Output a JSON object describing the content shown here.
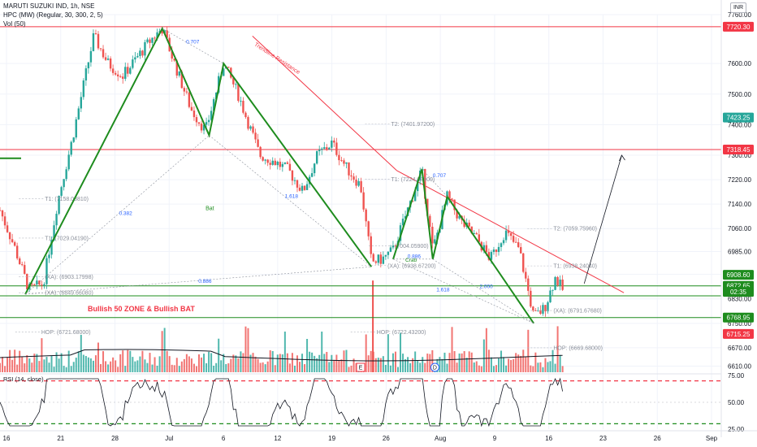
{
  "header": {
    "title": "MARUTI SUZUKI IND, 1h, NSE",
    "indicator": "HPC (MW) (Regular, 30, 300, 2, 5)",
    "volume": "Vol (50)",
    "currency": "INR"
  },
  "colors": {
    "up": "#26a69a",
    "down": "#ef5350",
    "pattern": "#1e8c1e",
    "resistance": "#f23645",
    "support": "#1e8c1e",
    "ma": "#131722",
    "rsi": "#131722"
  },
  "chart_data": [
    {
      "type": "candlestick",
      "title": "",
      "timeframe": "1h",
      "ylim": [
        6590,
        7760
      ],
      "y_ticks": [
        "7760.00",
        "7600.00",
        "7500.00",
        "7400.00",
        "7300.00",
        "7220.00",
        "7140.00",
        "7060.00",
        "6985.00",
        "6910.00",
        "6830.00",
        "6750.00",
        "6670.00",
        "6610.00"
      ],
      "x_ticks": [
        "16",
        "21",
        "28",
        "Jul",
        "6",
        "12",
        "19",
        "26",
        "Aug",
        "9",
        "16",
        "23",
        "26",
        "Sep"
      ],
      "price_tags": [
        {
          "label": "7720.30",
          "value": 7720.3,
          "color": "#f23645"
        },
        {
          "label": "7423.25",
          "value": 7423.25,
          "color": "#26a69a"
        },
        {
          "label": "7318.45",
          "value": 7318.45,
          "color": "#f23645"
        },
        {
          "label": "6908.60",
          "value": 6908.6,
          "color": "#1e8c1e"
        },
        {
          "label": "6872.65",
          "value": 6872.65,
          "color": "#1e8c1e"
        },
        {
          "label": "02:35",
          "value": 6853,
          "color": "#1e8c1e"
        },
        {
          "label": "6768.95",
          "value": 6768.95,
          "color": "#1e8c1e"
        },
        {
          "label": "6715.25",
          "value": 6715.25,
          "color": "#f23645"
        }
      ],
      "horizontal_lines": [
        {
          "value": 7720.3,
          "color": "#f23645"
        },
        {
          "value": 7318.45,
          "color": "#f23645"
        },
        {
          "value": 6872.65,
          "color": "#1e8c1e"
        },
        {
          "value": 6840,
          "color": "#1e8c1e"
        },
        {
          "value": 6768.95,
          "color": "#1e8c1e"
        }
      ],
      "harmonic_patterns": [
        {
          "name": "Bat",
          "points": [
            [
              0.035,
              6845
            ],
            [
              0.225,
              7715
            ],
            [
              0.29,
              7365
            ],
            [
              0.31,
              7600
            ],
            [
              0.515,
              6935
            ]
          ]
        },
        {
          "name": "Crab",
          "points": [
            [
              0.545,
              6960
            ],
            [
              0.585,
              7255
            ],
            [
              0.6,
              6960
            ],
            [
              0.62,
              7165
            ],
            [
              0.74,
              6750
            ]
          ]
        }
      ],
      "pattern_ratios": [
        {
          "text": "0.707",
          "x": 0.258,
          "y": 7665
        },
        {
          "text": "0.382",
          "x": 0.165,
          "y": 7105
        },
        {
          "text": "1.618",
          "x": 0.395,
          "y": 7160
        },
        {
          "text": "0.886",
          "x": 0.275,
          "y": 6883
        },
        {
          "text": "0.707",
          "x": 0.6,
          "y": 7228
        },
        {
          "text": "0.886",
          "x": 0.565,
          "y": 6963
        },
        {
          "text": "1.618",
          "x": 0.605,
          "y": 6855
        },
        {
          "text": "2.000",
          "x": 0.665,
          "y": 6865
        }
      ],
      "levels": [
        {
          "text": "T2: (7401.97200)",
          "x": 0.54,
          "y": 7402
        },
        {
          "text": "T1: (7224.08900)",
          "x": 0.54,
          "y": 7222
        },
        {
          "text": "T1: (7158.08810)",
          "x": 0.06,
          "y": 7158
        },
        {
          "text": "T1: (7029.04190)",
          "x": 0.06,
          "y": 7029
        },
        {
          "text": "(XA): (6903.17998)",
          "x": 0.06,
          "y": 6903
        },
        {
          "text": "(XA): (6849.66080)",
          "x": 0.06,
          "y": 6850
        },
        {
          "text": "(7004.05900)",
          "x": 0.545,
          "y": 7004
        },
        {
          "text": "(XA): (6938.67200)",
          "x": 0.535,
          "y": 6939
        },
        {
          "text": "T2: (7059.75960)",
          "x": 0.765,
          "y": 7060
        },
        {
          "text": "T1: (6938.24040)",
          "x": 0.765,
          "y": 6938
        },
        {
          "text": "(XA): (6791.67680)",
          "x": 0.765,
          "y": 6792
        },
        {
          "text": "HOP: (6721.68000)",
          "x": 0.055,
          "y": 6722
        },
        {
          "text": "HOP: (6722.43200)",
          "x": 0.52,
          "y": 6722
        },
        {
          "text": "HOP: (6669.68000)",
          "x": 0.765,
          "y": 6670
        }
      ],
      "annotations": [
        {
          "text": "Bullish 50 ZONE & Bullish BAT"
        },
        {
          "text": "Trendline Resistance"
        },
        {
          "text": "Bat"
        },
        {
          "text": "Crab"
        }
      ]
    },
    {
      "type": "line",
      "title": "RSI (14, close)",
      "ylim": [
        25,
        75
      ],
      "y_ticks": [
        "75.00",
        "50.00",
        "25.00"
      ],
      "bands": [
        70,
        30
      ],
      "midline": 50
    }
  ],
  "events": [
    {
      "label": "E",
      "x": 0.5
    },
    {
      "label": "D",
      "x": 0.603
    }
  ]
}
